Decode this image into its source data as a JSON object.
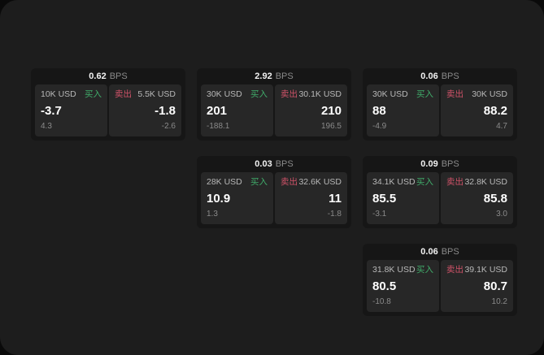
{
  "labels": {
    "bps_unit": "BPS",
    "buy": "买入",
    "sell": "卖出"
  },
  "colors": {
    "page_bg": "#1d1d1d",
    "outer_bg": "#0a0a0a",
    "card_bg": "#161616",
    "panel_bg": "#272727",
    "buy_accent": "#40ab6a",
    "sell_accent": "#cf5268"
  },
  "cards": [
    {
      "bps": "0.62",
      "buy": {
        "amount": "10K USD",
        "price": "-3.7",
        "delta": "4.3"
      },
      "sell": {
        "amount": "5.5K USD",
        "price": "-1.8",
        "delta": "-2.6"
      }
    },
    {
      "bps": "2.92",
      "buy": {
        "amount": "30K USD",
        "price": "201",
        "delta": "-188.1"
      },
      "sell": {
        "amount": "30.1K USD",
        "price": "210",
        "delta": "196.5"
      }
    },
    {
      "bps": "0.06",
      "buy": {
        "amount": "30K USD",
        "price": "88",
        "delta": "-4.9"
      },
      "sell": {
        "amount": "30K USD",
        "price": "88.2",
        "delta": "4.7"
      }
    },
    {
      "bps": "0.03",
      "buy": {
        "amount": "28K USD",
        "price": "10.9",
        "delta": "1.3"
      },
      "sell": {
        "amount": "32.6K USD",
        "price": "11",
        "delta": "-1.8"
      }
    },
    {
      "bps": "0.09",
      "buy": {
        "amount": "34.1K USD",
        "price": "85.5",
        "delta": "-3.1"
      },
      "sell": {
        "amount": "32.8K USD",
        "price": "85.8",
        "delta": "3.0"
      }
    },
    {
      "bps": "0.06",
      "buy": {
        "amount": "31.8K USD",
        "price": "80.5",
        "delta": "-10.8"
      },
      "sell": {
        "amount": "39.1K USD",
        "price": "80.7",
        "delta": "10.2"
      }
    }
  ]
}
